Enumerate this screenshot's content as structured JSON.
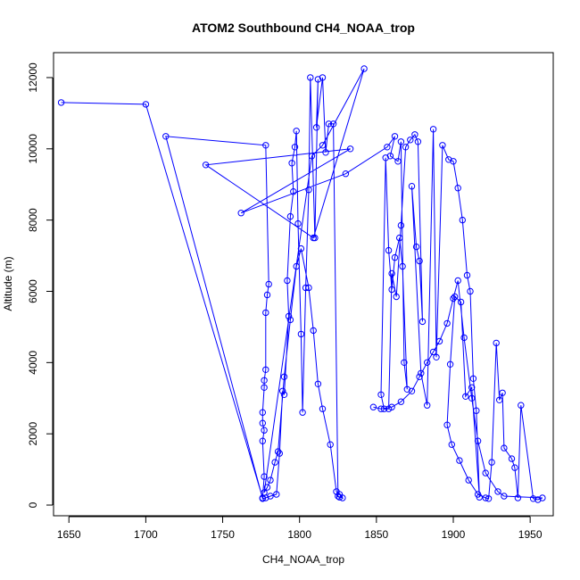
{
  "chart_data": {
    "type": "line",
    "title": "ATOM2 Southbound CH4_NOAA_trop",
    "xlabel": "CH4_NOAA_trop",
    "ylabel": "Altitude (m)",
    "xlim": [
      1640,
      1965
    ],
    "ylim": [
      -300,
      12700
    ],
    "x_ticks": [
      "1650",
      "1700",
      "1750",
      "1800",
      "1850",
      "1900",
      "1950"
    ],
    "y_ticks": [
      "0",
      "2000",
      "4000",
      "6000",
      "8000",
      "10000",
      "12000"
    ],
    "grid": false,
    "series": [
      {
        "name": "CH4_NOAA_trop",
        "color": "#0000ff",
        "marker": "open-circle",
        "x": [
          1645,
          1700,
          1776,
          1777,
          1776,
          1777,
          1776,
          1776,
          1777,
          1777,
          1778,
          1778,
          1779,
          1780,
          1778,
          1713,
          1776,
          1778,
          1781,
          1785,
          1787,
          1789,
          1790,
          1793,
          1792,
          1794,
          1796,
          1795,
          1797,
          1798,
          1799,
          1801,
          1802,
          1804,
          1806,
          1807,
          1810,
          1812,
          1811,
          1815,
          1817,
          1819,
          1822,
          1825,
          1826,
          1828,
          1826,
          1824,
          1820,
          1815,
          1812,
          1809,
          1806,
          1801,
          1798,
          1794,
          1790,
          1786,
          1784,
          1781,
          1779,
          1777,
          1808,
          1815,
          1842,
          1809,
          1739,
          1833,
          1762,
          1830,
          1857,
          1862,
          1859,
          1864,
          1866,
          1868,
          1870,
          1867,
          1865,
          1862,
          1860,
          1858,
          1856,
          1853,
          1855,
          1858,
          1860,
          1863,
          1866,
          1869,
          1872,
          1875,
          1877,
          1880,
          1878,
          1876,
          1873,
          1879,
          1883,
          1887,
          1889,
          1893,
          1897,
          1900,
          1903,
          1906,
          1909,
          1911,
          1913,
          1915,
          1917,
          1912,
          1908,
          1905,
          1901,
          1898,
          1896,
          1899,
          1904,
          1910,
          1916,
          1921,
          1923,
          1925,
          1928,
          1930,
          1932,
          1933,
          1938,
          1940,
          1942,
          1944,
          1952,
          1955,
          1958,
          1933,
          1929,
          1921,
          1916,
          1912,
          1907,
          1903,
          1900,
          1896,
          1891,
          1887,
          1883,
          1878,
          1873,
          1866,
          1860,
          1853,
          1848
        ],
        "y": [
          11300,
          11250,
          200,
          800,
          1800,
          2100,
          2300,
          2600,
          3300,
          3500,
          3800,
          5400,
          5900,
          6200,
          10100,
          10350,
          180,
          200,
          250,
          300,
          1450,
          3200,
          3100,
          5300,
          6300,
          8100,
          8800,
          9600,
          10050,
          10500,
          7900,
          4800,
          2600,
          6100,
          8850,
          12000,
          7500,
          11950,
          10600,
          12000,
          9900,
          10700,
          10700,
          250,
          220,
          200,
          300,
          380,
          1700,
          2700,
          3400,
          4900,
          6100,
          7200,
          6700,
          5200,
          3600,
          1500,
          1200,
          700,
          500,
          350,
          9800,
          10100,
          12250,
          7500,
          9550,
          10000,
          8200,
          9300,
          10050,
          10350,
          9800,
          9650,
          10200,
          4000,
          3250,
          6700,
          7500,
          6950,
          6050,
          7150,
          9750,
          3100,
          2700,
          2700,
          6500,
          5850,
          7850,
          10050,
          10250,
          10400,
          10200,
          5150,
          6850,
          7250,
          8950,
          3700,
          2800,
          10550,
          4150,
          10100,
          9700,
          9650,
          8900,
          8000,
          6450,
          6000,
          3550,
          2650,
          220,
          3300,
          3050,
          5700,
          5850,
          3950,
          2250,
          1700,
          1250,
          700,
          300,
          200,
          180,
          1200,
          4550,
          2950,
          3150,
          1600,
          1300,
          1050,
          200,
          2800,
          180,
          150,
          200,
          250,
          380,
          900,
          1800,
          3000,
          4700,
          6300,
          5800,
          5100,
          4600,
          4300,
          4000,
          3600,
          3200,
          2900,
          2750,
          2700,
          2750
        ]
      }
    ]
  }
}
